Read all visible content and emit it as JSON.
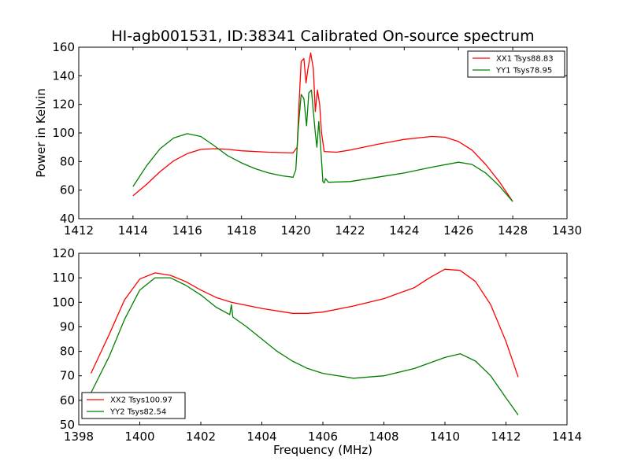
{
  "figure": {
    "title": "HI-agb001531, ID:38341 Calibrated On-source spectrum",
    "ylabel": "Power in Kelvin",
    "xlabel": "Frequency (MHz)"
  },
  "colors": {
    "red": "#ff0000",
    "green": "#008000"
  },
  "chart_data": [
    {
      "type": "line",
      "xlim": [
        1412,
        1430
      ],
      "ylim": [
        40,
        160
      ],
      "xticks": [
        1412,
        1414,
        1416,
        1418,
        1420,
        1422,
        1424,
        1426,
        1428,
        1430
      ],
      "yticks": [
        40,
        60,
        80,
        100,
        120,
        140,
        160
      ],
      "legend_position": "top-right",
      "series": [
        {
          "name": "XX1 Tsys88.83",
          "color": "#ff0000",
          "points": [
            [
              1414,
              56
            ],
            [
              1414.5,
              64
            ],
            [
              1415,
              73
            ],
            [
              1415.5,
              80.5
            ],
            [
              1416,
              85.5
            ],
            [
              1416.5,
              88.5
            ],
            [
              1417,
              89
            ],
            [
              1417.5,
              88.5
            ],
            [
              1418,
              87.5
            ],
            [
              1419,
              86.5
            ],
            [
              1419.9,
              86
            ],
            [
              1420.05,
              90
            ],
            [
              1420.12,
              120
            ],
            [
              1420.2,
              150
            ],
            [
              1420.3,
              152
            ],
            [
              1420.38,
              135
            ],
            [
              1420.45,
              145
            ],
            [
              1420.55,
              156
            ],
            [
              1420.65,
              145
            ],
            [
              1420.72,
              115
            ],
            [
              1420.8,
              130
            ],
            [
              1420.88,
              120
            ],
            [
              1420.95,
              100
            ],
            [
              1421.05,
              87
            ],
            [
              1421.5,
              86.5
            ],
            [
              1422,
              88
            ],
            [
              1423,
              92
            ],
            [
              1424,
              95.5
            ],
            [
              1425,
              97.5
            ],
            [
              1425.5,
              97
            ],
            [
              1426,
              94
            ],
            [
              1426.5,
              88
            ],
            [
              1427,
              78
            ],
            [
              1427.5,
              66
            ],
            [
              1428,
              52
            ]
          ]
        },
        {
          "name": "YY1 Tsys78.95",
          "color": "#008000",
          "points": [
            [
              1414,
              62.5
            ],
            [
              1414.5,
              77
            ],
            [
              1415,
              89
            ],
            [
              1415.5,
              96.5
            ],
            [
              1416,
              99.5
            ],
            [
              1416.5,
              97.5
            ],
            [
              1417,
              91
            ],
            [
              1417.5,
              84
            ],
            [
              1418,
              79
            ],
            [
              1418.5,
              75
            ],
            [
              1419,
              72
            ],
            [
              1419.5,
              70
            ],
            [
              1419.9,
              69
            ],
            [
              1420.0,
              74
            ],
            [
              1420.1,
              105
            ],
            [
              1420.2,
              127
            ],
            [
              1420.3,
              124
            ],
            [
              1420.4,
              105
            ],
            [
              1420.48,
              128
            ],
            [
              1420.58,
              130
            ],
            [
              1420.65,
              115
            ],
            [
              1420.72,
              100
            ],
            [
              1420.78,
              90
            ],
            [
              1420.85,
              108
            ],
            [
              1420.92,
              90
            ],
            [
              1421.0,
              66
            ],
            [
              1421.05,
              65
            ],
            [
              1421.1,
              68
            ],
            [
              1421.2,
              65.5
            ],
            [
              1422,
              66
            ],
            [
              1423,
              69
            ],
            [
              1424,
              72
            ],
            [
              1425,
              76
            ],
            [
              1426,
              79.5
            ],
            [
              1426.5,
              78
            ],
            [
              1427,
              72
            ],
            [
              1427.5,
              63
            ],
            [
              1428,
              52
            ]
          ]
        }
      ]
    },
    {
      "type": "line",
      "xlim": [
        1398,
        1414
      ],
      "ylim": [
        50,
        120
      ],
      "xticks": [
        1398,
        1400,
        1402,
        1404,
        1406,
        1408,
        1410,
        1412,
        1414
      ],
      "yticks": [
        50,
        60,
        70,
        80,
        90,
        100,
        110,
        120
      ],
      "legend_position": "bottom-left",
      "series": [
        {
          "name": "XX2 Tsys100.97",
          "color": "#ff0000",
          "points": [
            [
              1398.4,
              71
            ],
            [
              1399,
              87
            ],
            [
              1399.5,
              101
            ],
            [
              1400,
              109.5
            ],
            [
              1400.5,
              112
            ],
            [
              1401,
              111
            ],
            [
              1401.5,
              108.5
            ],
            [
              1402,
              105
            ],
            [
              1402.5,
              102
            ],
            [
              1403,
              100
            ],
            [
              1404,
              97.5
            ],
            [
              1405,
              95.5
            ],
            [
              1405.5,
              95.5
            ],
            [
              1406,
              96
            ],
            [
              1407,
              98.5
            ],
            [
              1408,
              101.5
            ],
            [
              1409,
              106
            ],
            [
              1409.5,
              110
            ],
            [
              1410,
              113.5
            ],
            [
              1410.5,
              113
            ],
            [
              1411,
              108.5
            ],
            [
              1411.5,
              99
            ],
            [
              1412,
              84
            ],
            [
              1412.4,
              69.5
            ]
          ]
        },
        {
          "name": "YY2 Tsys82.54",
          "color": "#008000",
          "points": [
            [
              1398.4,
              63
            ],
            [
              1399,
              78
            ],
            [
              1399.5,
              93
            ],
            [
              1400,
              105
            ],
            [
              1400.5,
              110
            ],
            [
              1401,
              110
            ],
            [
              1401.5,
              107
            ],
            [
              1402,
              103
            ],
            [
              1402.5,
              98
            ],
            [
              1402.95,
              95
            ],
            [
              1403.0,
              99
            ],
            [
              1403.05,
              94
            ],
            [
              1403.5,
              90
            ],
            [
              1404,
              85
            ],
            [
              1404.5,
              80
            ],
            [
              1405,
              76
            ],
            [
              1405.5,
              73
            ],
            [
              1406,
              71
            ],
            [
              1407,
              69
            ],
            [
              1408,
              70
            ],
            [
              1409,
              73
            ],
            [
              1410,
              77.5
            ],
            [
              1410.5,
              79
            ],
            [
              1411,
              76
            ],
            [
              1411.5,
              70
            ],
            [
              1412,
              61
            ],
            [
              1412.4,
              54
            ]
          ]
        }
      ]
    }
  ]
}
